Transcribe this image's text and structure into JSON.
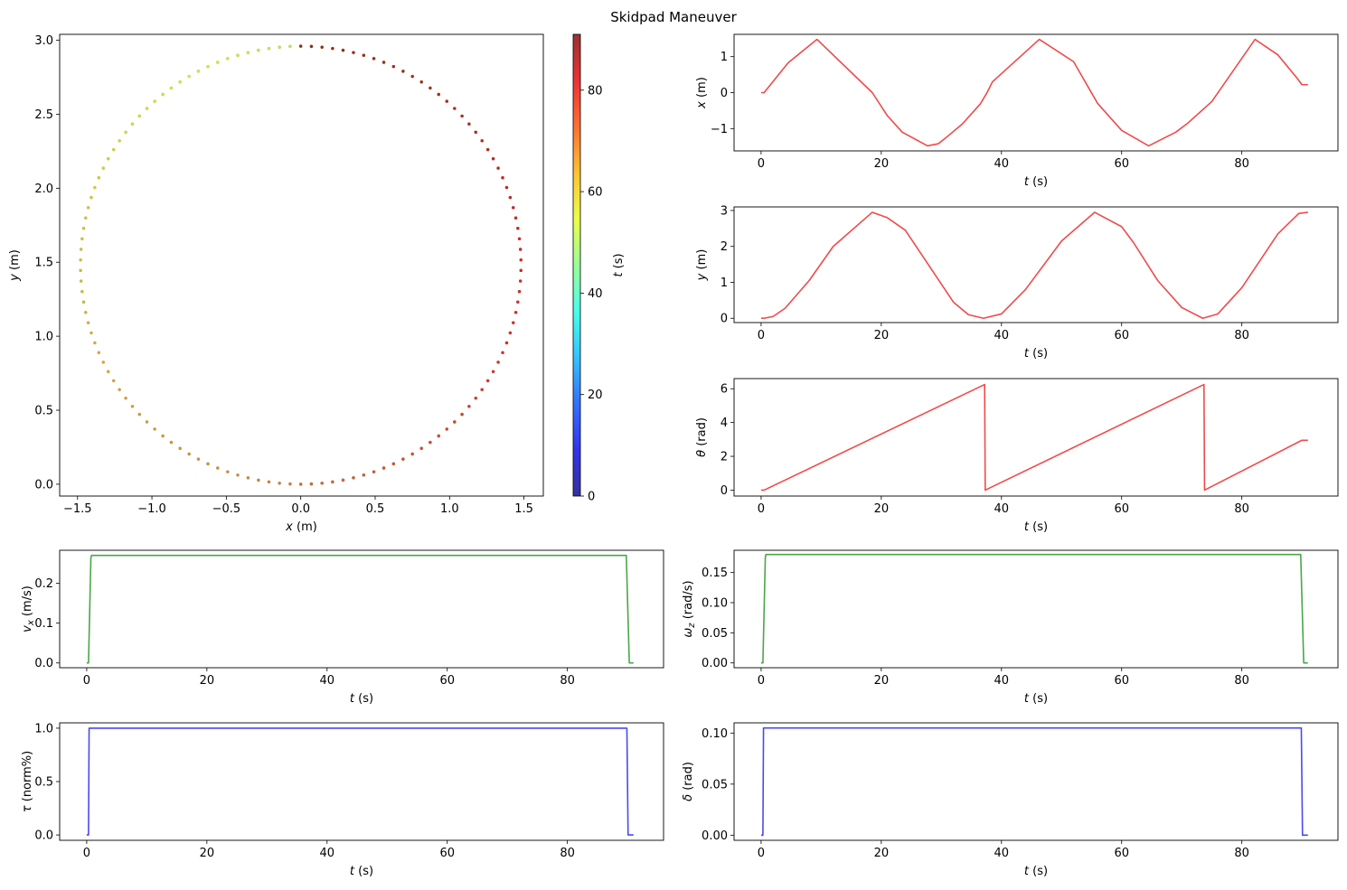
{
  "figure": {
    "title": "Skidpad Maneuver"
  },
  "chart_data": [
    {
      "id": "traj",
      "type": "scatter",
      "title": "",
      "xlabel": "x (m)",
      "ylabel": "y (m)",
      "xlim": [
        -1.62,
        1.63
      ],
      "ylim": [
        -0.08,
        3.04
      ],
      "xticks": [
        -1.5,
        -1.0,
        -0.5,
        0.0,
        0.5,
        1.0,
        1.5
      ],
      "xtick_labels": [
        "−1.5",
        "−1.0",
        "−0.5",
        "0.0",
        "0.5",
        "1.0",
        "1.5"
      ],
      "yticks": [
        0.0,
        0.5,
        1.0,
        1.5,
        2.0,
        2.5,
        3.0
      ],
      "ytick_labels": [
        "0.0",
        "0.5",
        "1.0",
        "1.5",
        "2.0",
        "2.5",
        "3.0"
      ],
      "circle": {
        "center_x": 0.0,
        "center_y": 1.48,
        "radius": 1.48
      },
      "t_range": [
        0,
        90.5
      ],
      "points_per_lap": 130,
      "laps": 2.5,
      "colormap": "jet",
      "grid": false
    },
    {
      "id": "colorbar",
      "type": "colorbar",
      "label": "t (s)",
      "range": [
        0,
        91
      ],
      "ticks": [
        0,
        20,
        40,
        60,
        80
      ],
      "tick_labels": [
        "0",
        "20",
        "40",
        "60",
        "80"
      ],
      "colormap": "jet"
    },
    {
      "id": "x",
      "type": "line",
      "xlabel": "t (s)",
      "ylabel": "x (m)",
      "color": "#f04a4a",
      "xlim": [
        -4.5,
        96
      ],
      "ylim": [
        -1.62,
        1.62
      ],
      "xticks": [
        0,
        20,
        40,
        60,
        80
      ],
      "xtick_labels": [
        "0",
        "20",
        "40",
        "60",
        "80"
      ],
      "yticks": [
        -1,
        0,
        1
      ],
      "ytick_labels": [
        "−1",
        "0",
        "1"
      ],
      "series": [
        {
          "x": [
            0,
            0.5,
            4.5,
            9.3,
            18.5,
            21.0,
            23.5,
            27.7,
            29.5,
            31.0,
            33.5,
            36.5,
            37.6,
            38.5,
            46.3,
            52.0,
            56.0,
            60.0,
            64.5,
            69.0,
            71.0,
            75.0,
            82.2,
            86.0,
            89.3,
            90.0,
            91.0
          ],
          "y": [
            0,
            0.0,
            0.83,
            1.48,
            0.0,
            -0.64,
            -1.1,
            -1.48,
            -1.42,
            -1.22,
            -0.87,
            -0.31,
            0.0,
            0.3,
            1.48,
            0.86,
            -0.3,
            -1.05,
            -1.48,
            -1.1,
            -0.85,
            -0.25,
            1.48,
            1.05,
            0.38,
            0.22,
            0.22
          ]
        }
      ]
    },
    {
      "id": "y",
      "type": "line",
      "xlabel": "t (s)",
      "ylabel": "y (m)",
      "color": "#f04a4a",
      "xlim": [
        -4.5,
        96
      ],
      "ylim": [
        -0.12,
        3.1
      ],
      "xticks": [
        0,
        20,
        40,
        60,
        80
      ],
      "xtick_labels": [
        "0",
        "20",
        "40",
        "60",
        "80"
      ],
      "yticks": [
        0,
        1,
        2,
        3
      ],
      "ytick_labels": [
        "0",
        "1",
        "2",
        "3"
      ],
      "series": [
        {
          "x": [
            0,
            0.5,
            2.0,
            4.0,
            8.0,
            12.0,
            18.5,
            21.0,
            24.0,
            28.0,
            32.0,
            34.5,
            37.0,
            40.0,
            44.0,
            50.0,
            55.5,
            60.0,
            62.0,
            66.0,
            70.0,
            73.5,
            76.0,
            80.0,
            86.0,
            89.5,
            91.0
          ],
          "y": [
            0,
            0.0,
            0.05,
            0.28,
            1.05,
            2.0,
            2.95,
            2.8,
            2.45,
            1.45,
            0.45,
            0.1,
            0.0,
            0.12,
            0.8,
            2.15,
            2.95,
            2.55,
            2.1,
            1.05,
            0.3,
            0.0,
            0.12,
            0.85,
            2.35,
            2.92,
            2.95
          ]
        }
      ]
    },
    {
      "id": "theta",
      "type": "line",
      "xlabel": "t (s)",
      "ylabel": "θ (rad)",
      "color": "#f04a4a",
      "xlim": [
        -4.5,
        96
      ],
      "ylim": [
        -0.35,
        6.6
      ],
      "xticks": [
        0,
        20,
        40,
        60,
        80
      ],
      "xtick_labels": [
        "0",
        "20",
        "40",
        "60",
        "80"
      ],
      "yticks": [
        0,
        2,
        4,
        6
      ],
      "ytick_labels": [
        "0",
        "2",
        "4",
        "6"
      ],
      "series": [
        {
          "x": [
            0,
            0.5,
            37.2,
            37.3,
            73.7,
            73.8,
            90.0,
            91.0
          ],
          "y": [
            0,
            0,
            6.25,
            0.0,
            6.25,
            0.0,
            2.95,
            2.95
          ]
        }
      ]
    },
    {
      "id": "vx",
      "type": "line",
      "xlabel": "t (s)",
      "ylabel": "v_x (m/s)",
      "color": "#4aa64a",
      "xlim": [
        -4.5,
        96
      ],
      "ylim": [
        -0.012,
        0.283
      ],
      "xticks": [
        0,
        20,
        40,
        60,
        80
      ],
      "xtick_labels": [
        "0",
        "20",
        "40",
        "60",
        "80"
      ],
      "yticks": [
        0.0,
        0.1,
        0.2
      ],
      "ytick_labels": [
        "0.0",
        "0.1",
        "0.2"
      ],
      "series": [
        {
          "x": [
            0,
            0.3,
            0.7,
            0.8,
            89.8,
            90.3,
            91.0
          ],
          "y": [
            0,
            0,
            0.265,
            0.27,
            0.27,
            0,
            0
          ]
        }
      ]
    },
    {
      "id": "wz",
      "type": "line",
      "xlabel": "t (s)",
      "ylabel": "ω_z (rad/s)",
      "color": "#4aa64a",
      "xlim": [
        -4.5,
        96
      ],
      "ylim": [
        -0.008,
        0.187
      ],
      "xticks": [
        0,
        20,
        40,
        60,
        80
      ],
      "xtick_labels": [
        "0",
        "20",
        "40",
        "60",
        "80"
      ],
      "yticks": [
        0.0,
        0.05,
        0.1,
        0.15
      ],
      "ytick_labels": [
        "0.00",
        "0.05",
        "0.10",
        "0.15"
      ],
      "series": [
        {
          "x": [
            0,
            0.3,
            0.7,
            0.8,
            89.8,
            90.3,
            91.0
          ],
          "y": [
            0,
            0,
            0.175,
            0.18,
            0.18,
            0,
            0
          ]
        }
      ]
    },
    {
      "id": "tau",
      "type": "line",
      "xlabel": "t (s)",
      "ylabel": "τ (norm%)",
      "color": "#4a4af0",
      "xlim": [
        -4.5,
        96
      ],
      "ylim": [
        -0.05,
        1.05
      ],
      "xticks": [
        0,
        20,
        40,
        60,
        80
      ],
      "xtick_labels": [
        "0",
        "20",
        "40",
        "60",
        "80"
      ],
      "yticks": [
        0.0,
        0.5,
        1.0
      ],
      "ytick_labels": [
        "0.0",
        "0.5",
        "1.0"
      ],
      "series": [
        {
          "x": [
            0,
            0.3,
            0.4,
            89.9,
            90.1,
            91.0
          ],
          "y": [
            0,
            0,
            1.0,
            1.0,
            0,
            0
          ]
        }
      ]
    },
    {
      "id": "delta",
      "type": "line",
      "xlabel": "t (s)",
      "ylabel": "δ (rad)",
      "color": "#4a4af0",
      "xlim": [
        -4.5,
        96
      ],
      "ylim": [
        -0.005,
        0.11
      ],
      "xticks": [
        0,
        20,
        40,
        60,
        80
      ],
      "xtick_labels": [
        "0",
        "20",
        "40",
        "60",
        "80"
      ],
      "yticks": [
        0.0,
        0.05,
        0.1
      ],
      "ytick_labels": [
        "0.00",
        "0.05",
        "0.10"
      ],
      "series": [
        {
          "x": [
            0,
            0.3,
            0.4,
            89.9,
            90.1,
            91.0
          ],
          "y": [
            0,
            0,
            0.105,
            0.105,
            0,
            0
          ]
        }
      ]
    }
  ]
}
